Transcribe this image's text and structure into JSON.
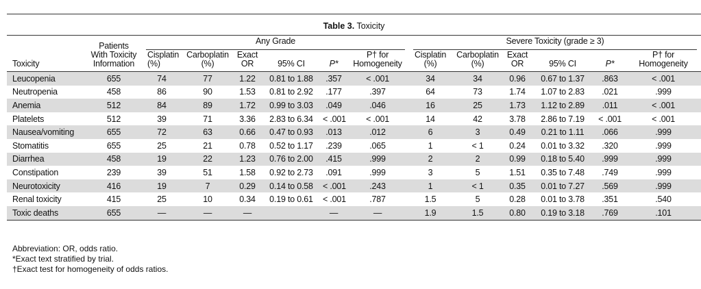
{
  "table": {
    "label": "Table 3.",
    "title": "Toxicity",
    "groups": [
      "Any Grade",
      "Severe Toxicity (grade ≥ 3)"
    ],
    "columns": [
      "Toxicity",
      "Patients With Toxicity Information",
      "Cisplatin (%)",
      "Carboplatin (%)",
      "Exact OR",
      "95% CI",
      "P*",
      "P† for Homogeneity",
      "Cisplatin (%)",
      "Carboplatin (%)",
      "Exact OR",
      "95% CI",
      "P*",
      "P† for Homogeneity"
    ],
    "rows": [
      [
        "Leucopenia",
        "655",
        "74",
        "77",
        "1.22",
        "0.81 to 1.88",
        ".357",
        "< .001",
        "34",
        "34",
        "0.96",
        "0.67 to 1.37",
        ".863",
        "< .001"
      ],
      [
        "Neutropenia",
        "458",
        "86",
        "90",
        "1.53",
        "0.81 to 2.92",
        ".177",
        ".397",
        "64",
        "73",
        "1.74",
        "1.07 to 2.83",
        ".021",
        ".999"
      ],
      [
        "Anemia",
        "512",
        "84",
        "89",
        "1.72",
        "0.99 to 3.03",
        ".049",
        ".046",
        "16",
        "25",
        "1.73",
        "1.12 to 2.89",
        ".011",
        "< .001"
      ],
      [
        "Platelets",
        "512",
        "39",
        "71",
        "3.36",
        "2.83 to 6.34",
        "< .001",
        "< .001",
        "14",
        "42",
        "3.78",
        "2.86 to 7.19",
        "< .001",
        "< .001"
      ],
      [
        "Nausea/vomiting",
        "655",
        "72",
        "63",
        "0.66",
        "0.47 to 0.93",
        ".013",
        ".012",
        "6",
        "3",
        "0.49",
        "0.21 to 1.11",
        ".066",
        ".999"
      ],
      [
        "Stomatitis",
        "655",
        "25",
        "21",
        "0.78",
        "0.52 to 1.17",
        ".239",
        ".065",
        "1",
        "< 1",
        "0.24",
        "0.01 to 3.32",
        ".320",
        ".999"
      ],
      [
        "Diarrhea",
        "458",
        "19",
        "22",
        "1.23",
        "0.76 to 2.00",
        ".415",
        ".999",
        "2",
        "2",
        "0.99",
        "0.18 to 5.40",
        ".999",
        ".999"
      ],
      [
        "Constipation",
        "239",
        "39",
        "51",
        "1.58",
        "0.92 to 2.73",
        ".091",
        ".999",
        "3",
        "5",
        "1.51",
        "0.35 to 7.48",
        ".749",
        ".999"
      ],
      [
        "Neurotoxicity",
        "416",
        "19",
        "7",
        "0.29",
        "0.14 to 0.58",
        "< .001",
        ".243",
        "1",
        "< 1",
        "0.35",
        "0.01 to 7.27",
        ".569",
        ".999"
      ],
      [
        "Renal toxicity",
        "415",
        "25",
        "10",
        "0.34",
        "0.19 to 0.61",
        "< .001",
        ".787",
        "1.5",
        "5",
        "0.28",
        "0.01 to 3.78",
        ".351",
        ".540"
      ],
      [
        "Toxic deaths",
        "655",
        "—",
        "—",
        "—",
        null,
        "—",
        "—",
        "1.9",
        "1.5",
        "0.80",
        "0.19 to 3.18",
        ".769",
        ".101"
      ]
    ],
    "notes": [
      "Abbreviation: OR, odds ratio.",
      "*Exact text stratified by trial.",
      "†Exact test for homogeneity of odds ratios."
    ]
  }
}
